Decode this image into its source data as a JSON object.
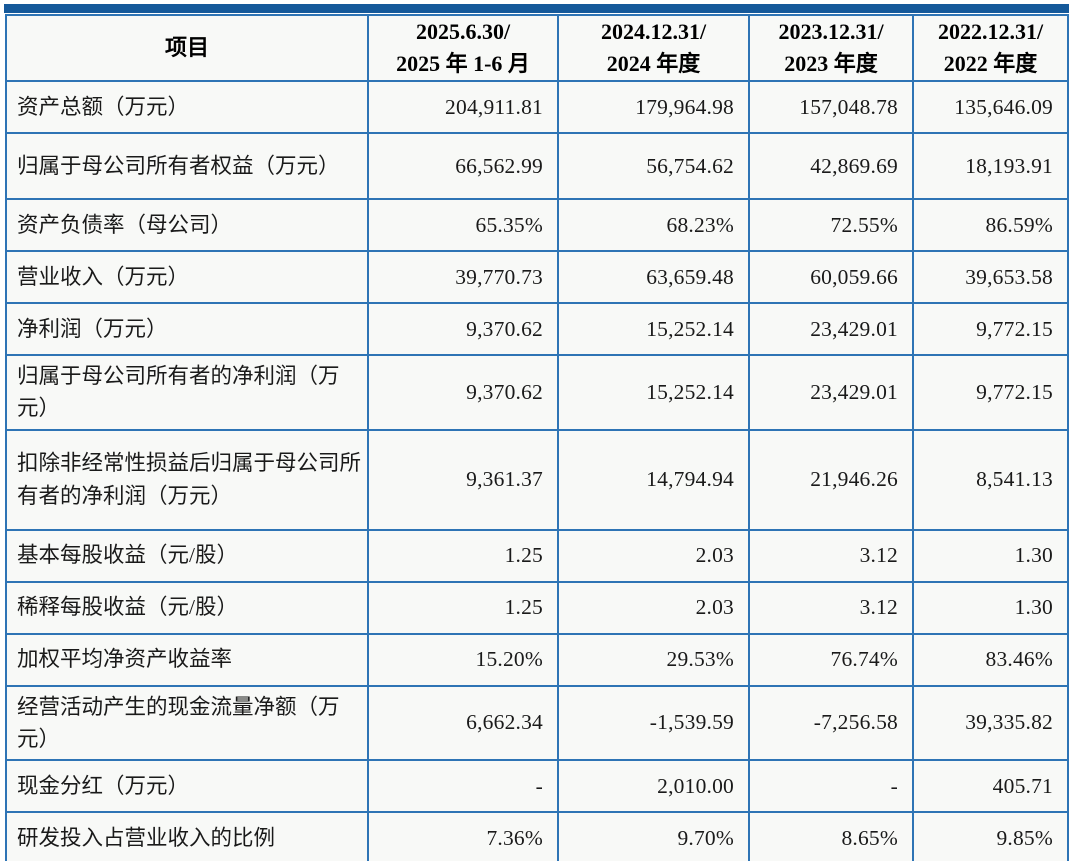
{
  "table": {
    "colors": {
      "border": "#2e74b5",
      "accent_bar": "#15599a",
      "cell_bg": "#f8f9f7",
      "text": "#1a1a1a"
    },
    "header": {
      "item_label": "项目",
      "periods": [
        {
          "line1": "2025.6.30/",
          "line2": "2025 年 1-6 月"
        },
        {
          "line1": "2024.12.31/",
          "line2": "2024 年度"
        },
        {
          "line1": "2023.12.31/",
          "line2": "2023 年度"
        },
        {
          "line1": "2022.12.31/",
          "line2": "2022 年度"
        }
      ]
    },
    "rows": [
      {
        "label": "资产总额（万元）",
        "values": [
          "204,911.81",
          "179,964.98",
          "157,048.78",
          "135,646.09"
        ]
      },
      {
        "label": "归属于母公司所有者权益（万元）",
        "values": [
          "66,562.99",
          "56,754.62",
          "42,869.69",
          "18,193.91"
        ]
      },
      {
        "label": "资产负债率（母公司）",
        "values": [
          "65.35%",
          "68.23%",
          "72.55%",
          "86.59%"
        ]
      },
      {
        "label": "营业收入（万元）",
        "values": [
          "39,770.73",
          "63,659.48",
          "60,059.66",
          "39,653.58"
        ]
      },
      {
        "label": "净利润（万元）",
        "values": [
          "9,370.62",
          "15,252.14",
          "23,429.01",
          "9,772.15"
        ]
      },
      {
        "label": "归属于母公司所有者的净利润（万元）",
        "values": [
          "9,370.62",
          "15,252.14",
          "23,429.01",
          "9,772.15"
        ]
      },
      {
        "label": "扣除非经常性损益后归属于母公司所有者的净利润（万元）",
        "values": [
          "9,361.37",
          "14,794.94",
          "21,946.26",
          "8,541.13"
        ]
      },
      {
        "label": "基本每股收益（元/股）",
        "values": [
          "1.25",
          "2.03",
          "3.12",
          "1.30"
        ]
      },
      {
        "label": "稀释每股收益（元/股）",
        "values": [
          "1.25",
          "2.03",
          "3.12",
          "1.30"
        ]
      },
      {
        "label": "加权平均净资产收益率",
        "values": [
          "15.20%",
          "29.53%",
          "76.74%",
          "83.46%"
        ]
      },
      {
        "label": "经营活动产生的现金流量净额（万元）",
        "values": [
          "6,662.34",
          "-1,539.59",
          "-7,256.58",
          "39,335.82"
        ]
      },
      {
        "label": "现金分红（万元）",
        "values": [
          "-",
          "2,010.00",
          "-",
          "405.71"
        ]
      },
      {
        "label": "研发投入占营业收入的比例",
        "values": [
          "7.36%",
          "9.70%",
          "8.65%",
          "9.85%"
        ]
      }
    ]
  }
}
